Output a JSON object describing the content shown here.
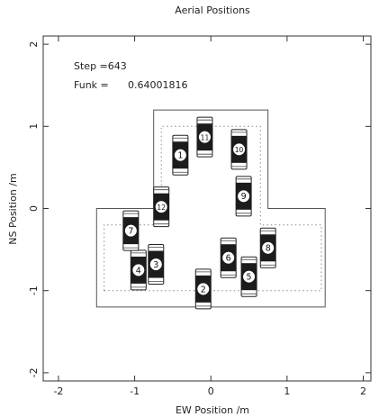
{
  "chart_data": {
    "type": "scatter",
    "title": "Aerial Positions",
    "xlabel": "EW Position /m",
    "ylabel": "NS Position /m",
    "xlim": [
      -2.2,
      2.1
    ],
    "ylim": [
      -2.1,
      2.1
    ],
    "x_ticks": [
      -2,
      -1,
      0,
      1,
      2
    ],
    "y_ticks": [
      -2,
      -1,
      0,
      1,
      2
    ],
    "annotations": {
      "step": "Step =643",
      "funk_label": "Funk =",
      "funk_value": "0.64001816"
    },
    "boundary_outer": [
      [
        -1.5,
        -1.2
      ],
      [
        1.5,
        -1.2
      ],
      [
        1.5,
        0
      ],
      [
        0.75,
        0
      ],
      [
        0.75,
        1.2
      ],
      [
        -0.75,
        1.2
      ],
      [
        -0.75,
        0
      ],
      [
        -1.5,
        0
      ]
    ],
    "boundary_inner": [
      [
        -1.4,
        -1.0
      ],
      [
        1.45,
        -1.0
      ],
      [
        1.45,
        -0.2
      ],
      [
        0.65,
        -0.2
      ],
      [
        0.65,
        1.0
      ],
      [
        -0.65,
        1.0
      ],
      [
        -0.65,
        -0.2
      ],
      [
        -1.4,
        -0.2
      ]
    ],
    "aerials": [
      {
        "label": "1",
        "x": -0.4,
        "y": 0.65
      },
      {
        "label": "2",
        "x": -0.1,
        "y": -0.98
      },
      {
        "label": "3",
        "x": -0.72,
        "y": -0.68
      },
      {
        "label": "4",
        "x": -0.95,
        "y": -0.75
      },
      {
        "label": "5",
        "x": 0.5,
        "y": -0.83
      },
      {
        "label": "6",
        "x": 0.23,
        "y": -0.6
      },
      {
        "label": "7",
        "x": -1.05,
        "y": -0.27
      },
      {
        "label": "8",
        "x": 0.75,
        "y": -0.48
      },
      {
        "label": "9",
        "x": 0.43,
        "y": 0.15
      },
      {
        "label": "10",
        "x": 0.37,
        "y": 0.72
      },
      {
        "label": "11",
        "x": -0.08,
        "y": 0.87
      },
      {
        "label": "12",
        "x": -0.65,
        "y": 0.02
      }
    ],
    "grid": false,
    "legend": "none"
  }
}
